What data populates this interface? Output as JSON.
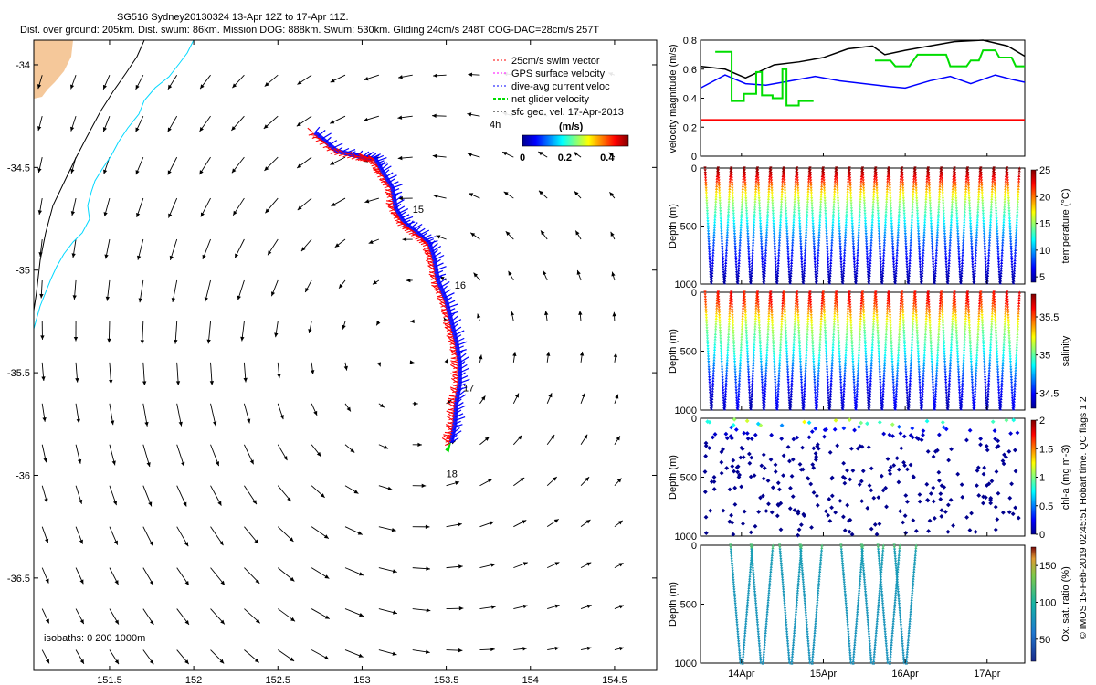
{
  "header": {
    "title": "SG516 Sydney20130324 13-Apr 12Z to 17-Apr 11Z.",
    "subtitle": "Dist. over ground: 205km. Dist. swum: 86km. Mission DOG: 888km. Swum: 530km. Gliding 24cm/s 248T COG-DAC=28cm/s 257T"
  },
  "credit": "© IMOS 15-Feb-2019 02:45:51 Hobart time. QC flags 1  2",
  "colors": {
    "swim_vector": "#ff0000",
    "gps_velocity": "#ff00ff",
    "dac_velocity": "#0000ff",
    "net_glider_velocity": "#00dd00",
    "sfc_geo_velocity": "#000000",
    "coast": "#000000",
    "isobath_200": "#00d8ff",
    "land": "#f5c89a"
  },
  "chart_data": [
    {
      "id": "map",
      "type": "scatter",
      "x_ticks": [
        "151.5",
        "152",
        "152.5",
        "153",
        "153.5",
        "154",
        "154.5"
      ],
      "y_ticks": [
        "-34",
        "-34.5",
        "-35",
        "-35.5",
        "-36",
        "-36.5"
      ],
      "xlim": [
        151.05,
        154.75
      ],
      "ylim": [
        -36.95,
        -33.88
      ],
      "legend": [
        "25cm/s swim vector",
        "GPS surface velocity",
        "dive-avg current veloc",
        "net glider velocity",
        "sfc geo. vel. 17-Apr-2013"
      ],
      "legend_placement": "top-right",
      "legend_extra": "4h",
      "colorbar": {
        "label": "(m/s)",
        "ticks": [
          "0",
          "0.2",
          "0.4"
        ],
        "range": [
          0,
          0.5
        ]
      },
      "isobath_label": "isobaths: 0   200  1000m",
      "track_day_labels": [
        {
          "text": "15",
          "lon": 153.3,
          "lat": -34.72
        },
        {
          "text": "16",
          "lon": 153.55,
          "lat": -35.09
        },
        {
          "text": "17",
          "lon": 153.6,
          "lat": -35.59
        },
        {
          "text": "18",
          "lon": 153.5,
          "lat": -36.01
        }
      ],
      "track": [
        [
          152.72,
          -34.33
        ],
        [
          152.85,
          -34.42
        ],
        [
          153.0,
          -34.45
        ],
        [
          153.08,
          -34.46
        ],
        [
          153.12,
          -34.52
        ],
        [
          153.18,
          -34.6
        ],
        [
          153.2,
          -34.7
        ],
        [
          153.25,
          -34.77
        ],
        [
          153.33,
          -34.82
        ],
        [
          153.4,
          -34.87
        ],
        [
          153.43,
          -34.95
        ],
        [
          153.45,
          -35.05
        ],
        [
          153.5,
          -35.15
        ],
        [
          153.53,
          -35.25
        ],
        [
          153.56,
          -35.35
        ],
        [
          153.58,
          -35.45
        ],
        [
          153.58,
          -35.55
        ],
        [
          153.56,
          -35.65
        ],
        [
          153.55,
          -35.75
        ],
        [
          153.53,
          -35.84
        ]
      ],
      "current_field": {
        "grid_lon": [
          151.1,
          154.6,
          0.2
        ],
        "grid_lat": [
          -34.05,
          -36.85,
          0.2
        ],
        "units": "m/s"
      }
    },
    {
      "id": "velocity",
      "type": "line",
      "ylabel": "velocity magnitude (m/s)",
      "ylim": [
        0,
        0.8
      ],
      "y_ticks": [
        "0",
        "0.2",
        "0.4",
        "0.6",
        "0.8"
      ],
      "xlim": [
        13.5,
        17.46
      ],
      "series": [
        {
          "color": "#000000",
          "values": [
            [
              13.5,
              0.62
            ],
            [
              13.8,
              0.6
            ],
            [
              14.05,
              0.54
            ],
            [
              14.4,
              0.63
            ],
            [
              14.7,
              0.65
            ],
            [
              15.0,
              0.68
            ],
            [
              15.3,
              0.74
            ],
            [
              15.6,
              0.76
            ],
            [
              15.75,
              0.7
            ],
            [
              16.0,
              0.73
            ],
            [
              16.3,
              0.76
            ],
            [
              16.6,
              0.79
            ],
            [
              16.95,
              0.8
            ],
            [
              17.25,
              0.76
            ],
            [
              17.46,
              0.69
            ]
          ]
        },
        {
          "color": "#0000ff",
          "values": [
            [
              13.5,
              0.47
            ],
            [
              13.8,
              0.56
            ],
            [
              14.05,
              0.5
            ],
            [
              14.3,
              0.49
            ],
            [
              14.6,
              0.52
            ],
            [
              14.9,
              0.55
            ],
            [
              15.2,
              0.52
            ],
            [
              15.5,
              0.5
            ],
            [
              15.8,
              0.48
            ],
            [
              16.0,
              0.47
            ],
            [
              16.3,
              0.52
            ],
            [
              16.55,
              0.55
            ],
            [
              16.8,
              0.5
            ],
            [
              17.1,
              0.56
            ],
            [
              17.3,
              0.53
            ],
            [
              17.46,
              0.51
            ]
          ]
        },
        {
          "color": "#00dd00",
          "values": [
            [
              13.68,
              0.72
            ],
            [
              13.88,
              0.72
            ],
            [
              13.88,
              0.38
            ],
            [
              14.03,
              0.38
            ],
            [
              14.03,
              0.43
            ],
            [
              14.18,
              0.43
            ],
            [
              14.18,
              0.58
            ],
            [
              14.25,
              0.58
            ],
            [
              14.25,
              0.42
            ],
            [
              14.38,
              0.42
            ],
            [
              14.38,
              0.4
            ],
            [
              14.5,
              0.4
            ],
            [
              14.5,
              0.6
            ],
            [
              14.55,
              0.6
            ],
            [
              14.55,
              0.35
            ],
            [
              14.7,
              0.35
            ],
            [
              14.7,
              0.38
            ],
            [
              14.88,
              0.38
            ],
            [
              15.63,
              0.66
            ],
            [
              15.82,
              0.66
            ],
            [
              15.88,
              0.62
            ],
            [
              16.05,
              0.62
            ],
            [
              16.15,
              0.7
            ],
            [
              16.5,
              0.7
            ],
            [
              16.55,
              0.62
            ],
            [
              16.75,
              0.62
            ],
            [
              16.8,
              0.66
            ],
            [
              16.9,
              0.66
            ],
            [
              16.95,
              0.73
            ],
            [
              17.1,
              0.73
            ],
            [
              17.15,
              0.68
            ],
            [
              17.3,
              0.68
            ],
            [
              17.35,
              0.62
            ],
            [
              17.46,
              0.62
            ]
          ]
        },
        {
          "color": "#ff0000",
          "values": [
            [
              13.5,
              0.25
            ],
            [
              17.46,
              0.25
            ]
          ]
        }
      ]
    },
    {
      "id": "temperature",
      "type": "scatter",
      "ylabel": "Depth (m)",
      "y_ticks": [
        "0",
        "500",
        "1000"
      ],
      "ylim": [
        1000,
        0
      ],
      "colorbar": {
        "label": "temperature (°C)",
        "ticks": [
          "25",
          "20",
          "15",
          "10",
          "5"
        ],
        "range": [
          4,
          25
        ]
      },
      "dives": 24,
      "values": [
        [
          0,
          25
        ],
        [
          100,
          22
        ],
        [
          200,
          18
        ],
        [
          300,
          15
        ],
        [
          400,
          13
        ],
        [
          500,
          11
        ],
        [
          600,
          9
        ],
        [
          700,
          7.5
        ],
        [
          800,
          6.5
        ],
        [
          900,
          5.5
        ],
        [
          1000,
          4.5
        ]
      ]
    },
    {
      "id": "salinity",
      "type": "scatter",
      "ylabel": "Depth (m)",
      "y_ticks": [
        "0",
        "500",
        "1000"
      ],
      "ylim": [
        1000,
        0
      ],
      "colorbar": {
        "label": "salinity",
        "ticks": [
          "35.5",
          "35",
          "34.5"
        ],
        "range": [
          34.3,
          35.8
        ]
      },
      "dives": 24,
      "values": [
        [
          0,
          35.6
        ],
        [
          100,
          35.55
        ],
        [
          200,
          35.3
        ],
        [
          300,
          35.1
        ],
        [
          400,
          35.0
        ],
        [
          500,
          34.9
        ],
        [
          600,
          34.75
        ],
        [
          700,
          34.6
        ],
        [
          800,
          34.5
        ],
        [
          900,
          34.45
        ],
        [
          1000,
          34.4
        ]
      ]
    },
    {
      "id": "chl",
      "type": "scatter",
      "ylabel": "Depth (m)",
      "y_ticks": [
        "0",
        "500",
        "1000"
      ],
      "ylim": [
        1000,
        0
      ],
      "colorbar": {
        "label": "chl-a (mg m-3)",
        "ticks": [
          "2",
          "1.5",
          "1",
          "0.5",
          "0"
        ],
        "range": [
          0,
          2
        ]
      },
      "dives": 24,
      "values": [
        [
          0,
          0.8
        ],
        [
          50,
          0.6
        ],
        [
          100,
          0.2
        ],
        [
          200,
          0.05
        ],
        [
          1000,
          0.02
        ]
      ]
    },
    {
      "id": "oxygen",
      "type": "scatter",
      "ylabel": "Depth (m)",
      "y_ticks": [
        "0",
        "500",
        "1000"
      ],
      "ylim": [
        1000,
        0
      ],
      "colorbar": {
        "label": "Ox. sat. ratio (%)",
        "ticks": [
          "150",
          "100",
          "50"
        ],
        "range": [
          20,
          175
        ]
      },
      "dives": 8,
      "values": [
        [
          0,
          85
        ],
        [
          300,
          80
        ],
        [
          600,
          78
        ],
        [
          1000,
          76
        ]
      ],
      "x_ticks": [
        "14Apr",
        "15Apr",
        "16Apr",
        "17Apr"
      ]
    }
  ]
}
